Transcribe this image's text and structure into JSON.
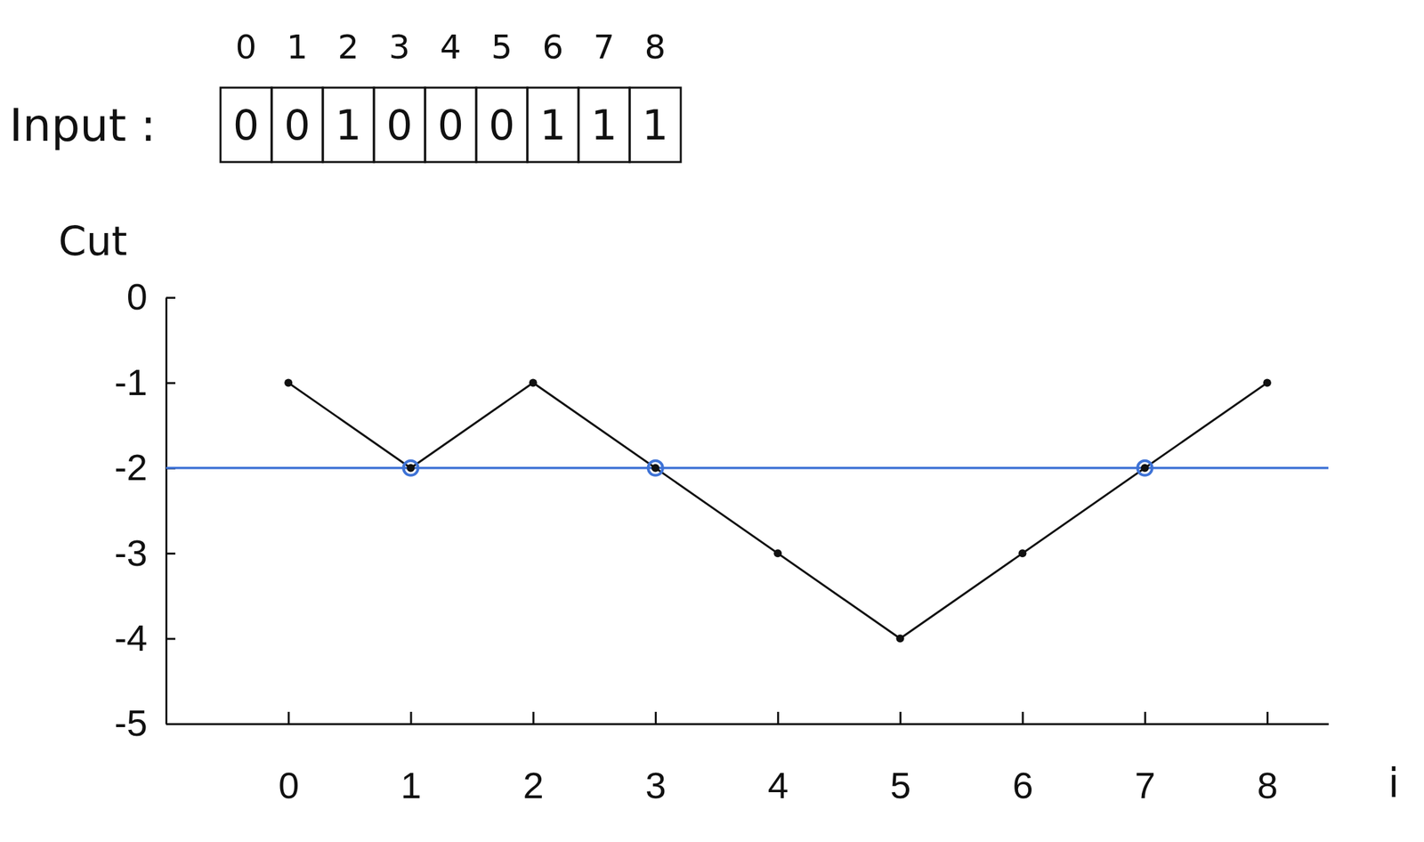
{
  "input": {
    "label": "Input :",
    "indices": [
      0,
      1,
      2,
      3,
      4,
      5,
      6,
      7,
      8
    ],
    "values": [
      0,
      0,
      1,
      0,
      0,
      0,
      1,
      1,
      1
    ]
  },
  "chart_data": {
    "type": "line",
    "y_label": "Cut",
    "x_label": "i",
    "x": [
      0,
      1,
      2,
      3,
      4,
      5,
      6,
      7,
      8
    ],
    "values": [
      -1,
      -2,
      -1,
      -2,
      -3,
      -4,
      -3,
      -2,
      -1
    ],
    "color": "#111111",
    "marker": "circle",
    "reference_line": {
      "value": -2,
      "color": "#3f73d6"
    },
    "xlim": [
      -1,
      8.5
    ],
    "xticks": [
      0,
      1,
      2,
      3,
      4,
      5,
      6,
      7,
      8
    ],
    "ylim": [
      -5,
      0
    ],
    "yticks": [
      0,
      -1,
      -2,
      -3,
      -4,
      -5
    ]
  }
}
